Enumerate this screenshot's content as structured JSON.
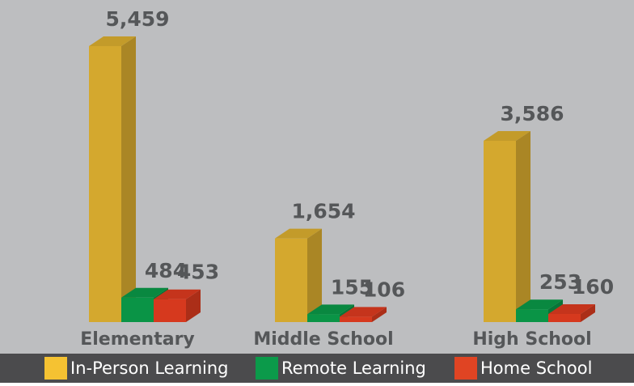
{
  "chart_data": {
    "type": "bar3d",
    "categories": [
      "Elementary",
      "Middle School",
      "High School"
    ],
    "series": [
      {
        "name": "In-Person Learning",
        "color": "#d4a82e",
        "legend_color": "#f5c232",
        "values": [
          5459,
          1654,
          3586
        ],
        "value_labels": [
          "5,459",
          "1,654",
          "3,586"
        ]
      },
      {
        "name": "Remote Learning",
        "color": "#0a9446",
        "legend_color": "#0b9a4a",
        "values": [
          484,
          155,
          253
        ]
      },
      {
        "name": "Home School",
        "color": "#d6391e",
        "legend_color": "#e04423",
        "values": [
          453,
          106,
          160
        ]
      }
    ],
    "legend": "bottom"
  }
}
